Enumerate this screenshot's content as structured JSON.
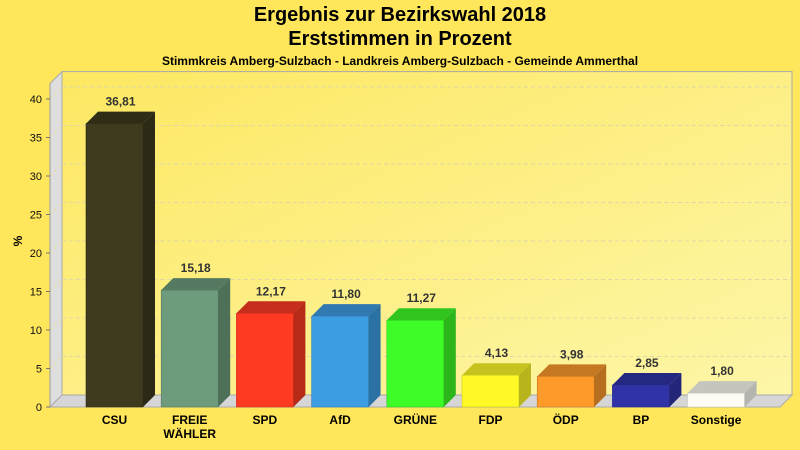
{
  "chart_data": {
    "type": "bar",
    "title": "Ergebnis zur Bezirkswahl 2018",
    "subtitle": "Erststimmen in Prozent",
    "caption": "Stimmkreis Amberg-Sulzbach - Landkreis Amberg-Sulzbach - Gemeinde Ammerthal",
    "xlabel": "",
    "ylabel": "%",
    "ylim": [
      0,
      42
    ],
    "yticks": [
      0,
      5,
      10,
      15,
      20,
      25,
      30,
      35,
      40
    ],
    "grid": true,
    "style": "3d",
    "categories": [
      "CSU",
      "FREIE WÄHLER",
      "SPD",
      "AfD",
      "GRÜNE",
      "FDP",
      "ÖDP",
      "BP",
      "Sonstige"
    ],
    "category_lines": [
      [
        "CSU"
      ],
      [
        "FREIE",
        "WÄHLER"
      ],
      [
        "SPD"
      ],
      [
        "AfD"
      ],
      [
        "GRÜNE"
      ],
      [
        "FDP"
      ],
      [
        "ÖDP"
      ],
      [
        "BP"
      ],
      [
        "Sonstige"
      ]
    ],
    "values": [
      36.81,
      15.18,
      12.17,
      11.8,
      11.27,
      4.13,
      3.98,
      2.85,
      1.8
    ],
    "value_labels": [
      "36,81",
      "15,18",
      "12,17",
      "11,80",
      "11,27",
      "4,13",
      "3,98",
      "2,85",
      "1,80"
    ],
    "colors": [
      "#3d3a1e",
      "#6d9b7c",
      "#ff3a22",
      "#3d9de3",
      "#3efc27",
      "#fffa27",
      "#fd9a2a",
      "#3033a8",
      "#fcfcf4"
    ]
  }
}
